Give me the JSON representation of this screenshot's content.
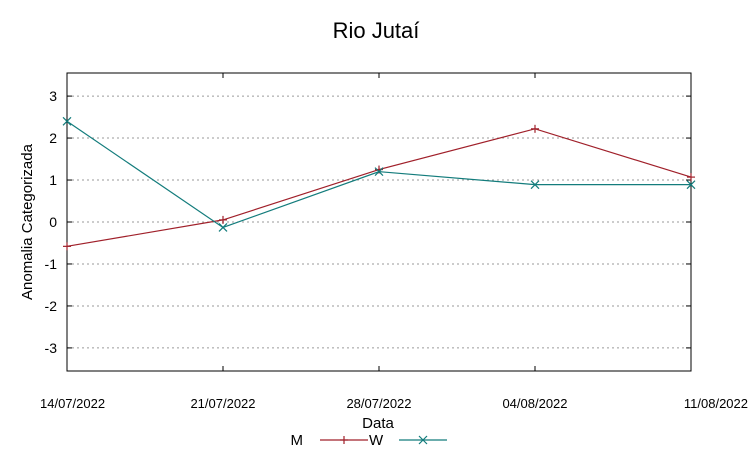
{
  "chart_data": {
    "type": "line",
    "title": "Rio Jutaí",
    "xlabel": "Data",
    "ylabel": "Anomalia Categorizada",
    "categories": [
      "14/07/2022",
      "21/07/2022",
      "28/07/2022",
      "04/08/2022",
      "11/08/2022"
    ],
    "yticks": [
      "-3",
      "-2",
      "-1",
      "0",
      "1",
      "2",
      "3"
    ],
    "ylim": [
      -3.55,
      3.55
    ],
    "grid": true,
    "legend_position": "bottom",
    "series": [
      {
        "name": "M",
        "color": "#a0202a",
        "marker": "plus",
        "values": [
          -0.58,
          0.05,
          1.25,
          2.22,
          1.07
        ]
      },
      {
        "name": "W",
        "color": "#137c7c",
        "marker": "cross",
        "values": [
          2.4,
          -0.13,
          1.2,
          0.89,
          0.89
        ]
      }
    ]
  }
}
